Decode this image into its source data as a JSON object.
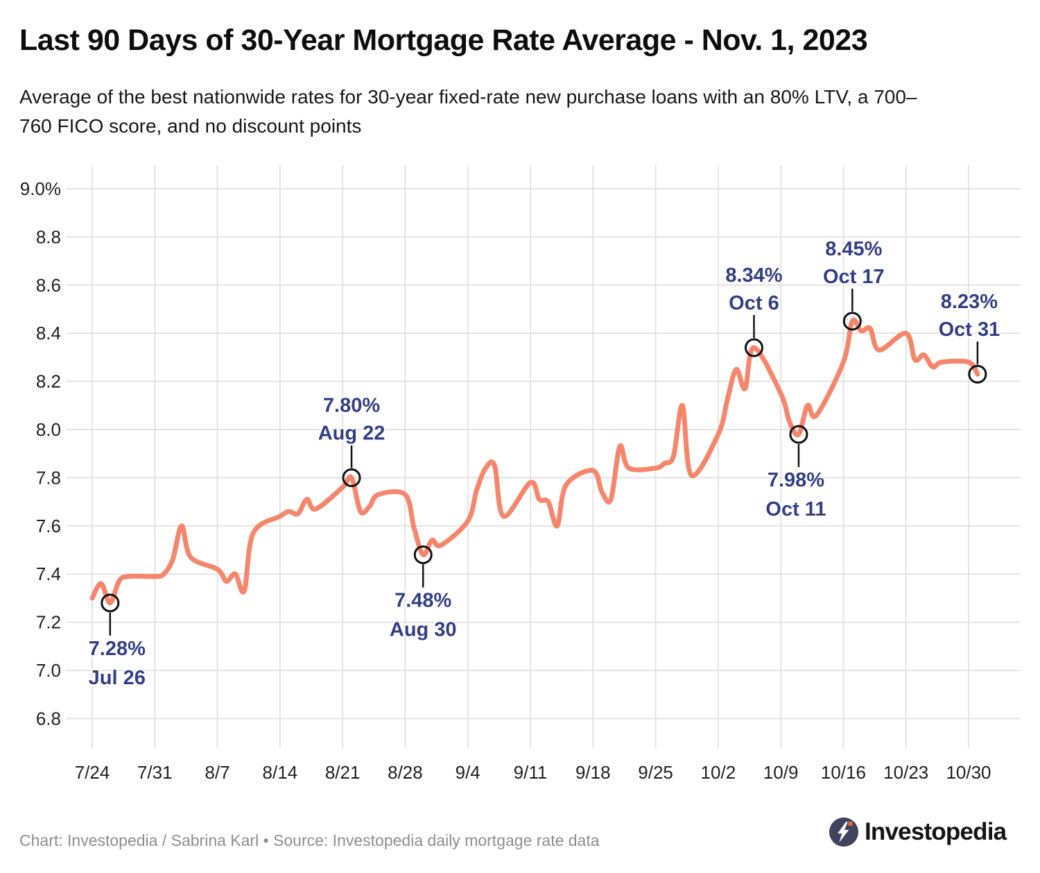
{
  "header": {
    "title": "Last 90 Days of 30-Year Mortgage Rate Average - Nov. 1, 2023",
    "subtitle_lines": [
      "Average of the best nationwide rates for 30-year fixed-rate new purchase loans with an 80% LTV, a 700–",
      "760 FICO score, and no discount points"
    ]
  },
  "colors": {
    "line": "#f5866c",
    "annotation_text": "#313f87",
    "grid": "#e3e3e3",
    "axis_text": "#1f1f1f",
    "marker_stroke": "#111111",
    "footer_text": "#8e8e8e",
    "logo_circle": "#3e4360",
    "logo_dot": "#e8643f",
    "logo_bolt": "#ffffff"
  },
  "chart_data": {
    "type": "line",
    "series_name": "30-year fixed-rate new purchase mortgage average (%)",
    "grid": true,
    "legend": "none",
    "ylim": [
      6.8,
      9.0
    ],
    "x_tick_labels": [
      "7/24",
      "7/31",
      "8/7",
      "8/14",
      "8/21",
      "8/28",
      "9/4",
      "9/11",
      "9/18",
      "9/25",
      "10/2",
      "10/9",
      "10/16",
      "10/23",
      "10/30"
    ],
    "y_ticks": [
      {
        "value": 9.0,
        "label": "9.0%"
      },
      {
        "value": 8.8,
        "label": "8.8"
      },
      {
        "value": 8.6,
        "label": "8.6"
      },
      {
        "value": 8.4,
        "label": "8.4"
      },
      {
        "value": 8.2,
        "label": "8.2"
      },
      {
        "value": 8.0,
        "label": "8.0"
      },
      {
        "value": 7.8,
        "label": "7.8"
      },
      {
        "value": 7.6,
        "label": "7.6"
      },
      {
        "value": 7.4,
        "label": "7.4"
      },
      {
        "value": 7.2,
        "label": "7.2"
      },
      {
        "value": 7.0,
        "label": "7.0"
      },
      {
        "value": 6.8,
        "label": "6.8"
      }
    ],
    "points_format": [
      "day_index_from_7_24",
      "date",
      "rate_pct"
    ],
    "points": [
      [
        0,
        "7/24",
        7.3
      ],
      [
        1,
        "7/25",
        7.36
      ],
      [
        2,
        "7/26",
        7.28
      ],
      [
        3,
        "7/27",
        7.37
      ],
      [
        4,
        "7/28",
        7.39
      ],
      [
        7,
        "7/31",
        7.39
      ],
      [
        8,
        "8/1",
        7.4
      ],
      [
        9,
        "8/2",
        7.46
      ],
      [
        10,
        "8/3",
        7.6
      ],
      [
        11,
        "8/4",
        7.47
      ],
      [
        14,
        "8/7",
        7.42
      ],
      [
        15,
        "8/8",
        7.37
      ],
      [
        16,
        "8/9",
        7.4
      ],
      [
        17,
        "8/10",
        7.33
      ],
      [
        18,
        "8/11",
        7.57
      ],
      [
        21,
        "8/14",
        7.64
      ],
      [
        22,
        "8/15",
        7.66
      ],
      [
        23,
        "8/16",
        7.65
      ],
      [
        24,
        "8/17",
        7.71
      ],
      [
        25,
        "8/18",
        7.67
      ],
      [
        28,
        "8/21",
        7.76
      ],
      [
        29,
        "8/22",
        7.8
      ],
      [
        30,
        "8/23",
        7.66
      ],
      [
        31,
        "8/24",
        7.68
      ],
      [
        32,
        "8/25",
        7.73
      ],
      [
        35,
        "8/28",
        7.73
      ],
      [
        36,
        "8/29",
        7.59
      ],
      [
        37,
        "8/30",
        7.48
      ],
      [
        38,
        "8/31",
        7.54
      ],
      [
        39,
        "9/1",
        7.52
      ],
      [
        42,
        "9/4",
        7.62
      ],
      [
        43,
        "9/5",
        7.75
      ],
      [
        44,
        "9/6",
        7.84
      ],
      [
        45,
        "9/7",
        7.85
      ],
      [
        46,
        "9/8",
        7.64
      ],
      [
        49,
        "9/11",
        7.78
      ],
      [
        50,
        "9/12",
        7.71
      ],
      [
        51,
        "9/13",
        7.7
      ],
      [
        52,
        "9/14",
        7.6
      ],
      [
        53,
        "9/15",
        7.77
      ],
      [
        56,
        "9/18",
        7.83
      ],
      [
        57,
        "9/19",
        7.74
      ],
      [
        58,
        "9/20",
        7.71
      ],
      [
        59,
        "9/21",
        7.93
      ],
      [
        60,
        "9/22",
        7.84
      ],
      [
        63,
        "9/25",
        7.84
      ],
      [
        64,
        "9/26",
        7.86
      ],
      [
        65,
        "9/27",
        7.89
      ],
      [
        66,
        "9/28",
        8.1
      ],
      [
        67,
        "9/29",
        7.81
      ],
      [
        70,
        "10/2",
        7.98
      ],
      [
        71,
        "10/3",
        8.12
      ],
      [
        72,
        "10/4",
        8.25
      ],
      [
        73,
        "10/5",
        8.17
      ],
      [
        74,
        "10/6",
        8.34
      ],
      [
        77,
        "10/9",
        8.15
      ],
      [
        78,
        "10/10",
        8.03
      ],
      [
        79,
        "10/11",
        7.98
      ],
      [
        80,
        "10/12",
        8.1
      ],
      [
        81,
        "10/13",
        8.06
      ],
      [
        84,
        "10/16",
        8.28
      ],
      [
        85,
        "10/17",
        8.45
      ],
      [
        86,
        "10/18",
        8.41
      ],
      [
        87,
        "10/19",
        8.42
      ],
      [
        88,
        "10/20",
        8.33
      ],
      [
        91,
        "10/23",
        8.4
      ],
      [
        92,
        "10/24",
        8.29
      ],
      [
        93,
        "10/25",
        8.31
      ],
      [
        94,
        "10/26",
        8.26
      ],
      [
        95,
        "10/27",
        8.28
      ],
      [
        98,
        "10/30",
        8.28
      ],
      [
        99,
        "10/31",
        8.23
      ]
    ],
    "annotations": [
      {
        "value_label": "7.28%",
        "date_label": "Jul 26",
        "day": 2,
        "value": 7.28,
        "placement": "below",
        "dx": 10
      },
      {
        "value_label": "7.80%",
        "date_label": "Aug 22",
        "day": 29,
        "value": 7.8,
        "placement": "above",
        "dx": 0
      },
      {
        "value_label": "7.48%",
        "date_label": "Aug 30",
        "day": 37,
        "value": 7.48,
        "placement": "below",
        "dx": 0
      },
      {
        "value_label": "8.34%",
        "date_label": "Oct 6",
        "day": 74,
        "value": 8.34,
        "placement": "above",
        "dx": 0
      },
      {
        "value_label": "7.98%",
        "date_label": "Oct 11",
        "day": 79,
        "value": 7.98,
        "placement": "below",
        "dx": -4
      },
      {
        "value_label": "8.45%",
        "date_label": "Oct 17",
        "day": 85,
        "value": 8.45,
        "placement": "above",
        "dx": 2
      },
      {
        "value_label": "8.23%",
        "date_label": "Oct 31",
        "day": 99,
        "value": 8.23,
        "placement": "above",
        "dx": -12
      }
    ]
  },
  "footer": {
    "credit": "Chart: Investopedia / Sabrina Karl • Source: Investopedia daily mortgage rate data",
    "logo_text": "Investopedia"
  }
}
